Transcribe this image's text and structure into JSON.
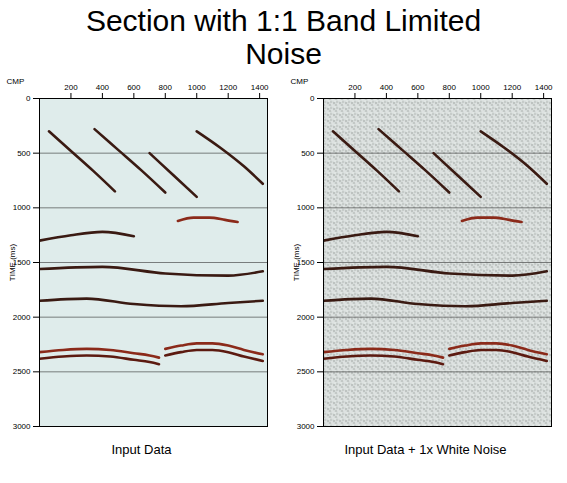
{
  "title": "Section with 1:1 Band Limited Noise",
  "chart_data": [
    {
      "type": "line",
      "title": "Input Data",
      "xlabel": "CMP",
      "ylabel": "TIME (ms)",
      "xlim": [
        0,
        1450
      ],
      "xticks": [
        200,
        400,
        600,
        800,
        1000,
        1200,
        1400
      ],
      "ylim": [
        0,
        3000
      ],
      "yticks": [
        0,
        500,
        1000,
        1500,
        2000,
        2500,
        3000
      ],
      "grid": true,
      "series": [
        {
          "color": "#8b2a1a",
          "x": [
            0,
            150,
            300,
            450,
            600,
            700,
            760
          ],
          "values": [
            2320,
            2300,
            2290,
            2300,
            2330,
            2350,
            2370
          ]
        },
        {
          "color": "#5c1a10",
          "x": [
            0,
            150,
            300,
            450,
            600,
            700,
            760
          ],
          "values": [
            2380,
            2360,
            2350,
            2360,
            2390,
            2410,
            2430
          ]
        },
        {
          "color": "#8b2a1a",
          "x": [
            800,
            900,
            1000,
            1100,
            1200,
            1300,
            1420
          ],
          "values": [
            2290,
            2260,
            2240,
            2240,
            2260,
            2300,
            2340
          ]
        },
        {
          "color": "#5c1a10",
          "x": [
            800,
            900,
            1000,
            1100,
            1200,
            1300,
            1420
          ],
          "values": [
            2350,
            2320,
            2300,
            2300,
            2320,
            2360,
            2400
          ]
        },
        {
          "color": "#8b2a1a",
          "x": [
            880,
            980,
            1080,
            1180,
            1260
          ],
          "values": [
            1120,
            1090,
            1090,
            1110,
            1130
          ]
        },
        {
          "color": "#3a1a12",
          "x": [
            60,
            200,
            340,
            480
          ],
          "values": [
            300,
            480,
            660,
            850
          ]
        },
        {
          "color": "#3a1a12",
          "x": [
            350,
            500,
            650,
            800
          ],
          "values": [
            280,
            470,
            660,
            860
          ]
        },
        {
          "color": "#3a1a12",
          "x": [
            700,
            850,
            1000
          ],
          "values": [
            500,
            700,
            900
          ]
        },
        {
          "color": "#3a1a12",
          "x": [
            1000,
            1150,
            1300,
            1420
          ],
          "values": [
            300,
            450,
            620,
            780
          ]
        },
        {
          "color": "#3a1a12",
          "x": [
            0,
            200,
            400,
            600
          ],
          "values": [
            1300,
            1250,
            1220,
            1260
          ]
        },
        {
          "color": "#3a1a12",
          "x": [
            0,
            400,
            800,
            1200,
            1420
          ],
          "values": [
            1560,
            1540,
            1600,
            1620,
            1580
          ]
        },
        {
          "color": "#3a1a12",
          "x": [
            0,
            300,
            600,
            900,
            1200,
            1420
          ],
          "values": [
            1850,
            1830,
            1880,
            1900,
            1870,
            1850
          ]
        }
      ]
    },
    {
      "type": "line",
      "title": "Input Data + 1x White Noise",
      "xlabel": "CMP",
      "ylabel": "TIME (ms)",
      "xlim": [
        0,
        1450
      ],
      "xticks": [
        200,
        400,
        600,
        800,
        1000,
        1200,
        1400
      ],
      "ylim": [
        0,
        3000
      ],
      "yticks": [
        0,
        500,
        1000,
        1500,
        2000,
        2500,
        3000
      ],
      "grid": true,
      "series": [
        {
          "color": "#8b2a1a",
          "x": [
            0,
            150,
            300,
            450,
            600,
            700,
            760
          ],
          "values": [
            2320,
            2300,
            2290,
            2300,
            2330,
            2350,
            2370
          ]
        },
        {
          "color": "#5c1a10",
          "x": [
            0,
            150,
            300,
            450,
            600,
            700,
            760
          ],
          "values": [
            2380,
            2360,
            2350,
            2360,
            2390,
            2410,
            2430
          ]
        },
        {
          "color": "#8b2a1a",
          "x": [
            800,
            900,
            1000,
            1100,
            1200,
            1300,
            1420
          ],
          "values": [
            2290,
            2260,
            2240,
            2240,
            2260,
            2300,
            2340
          ]
        },
        {
          "color": "#5c1a10",
          "x": [
            800,
            900,
            1000,
            1100,
            1200,
            1300,
            1420
          ],
          "values": [
            2350,
            2320,
            2300,
            2300,
            2320,
            2360,
            2400
          ]
        },
        {
          "color": "#8b2a1a",
          "x": [
            880,
            980,
            1080,
            1180,
            1260
          ],
          "values": [
            1120,
            1090,
            1090,
            1110,
            1130
          ]
        },
        {
          "color": "#3a1a12",
          "x": [
            60,
            200,
            340,
            480
          ],
          "values": [
            300,
            480,
            660,
            850
          ]
        },
        {
          "color": "#3a1a12",
          "x": [
            350,
            500,
            650,
            800
          ],
          "values": [
            280,
            470,
            660,
            860
          ]
        },
        {
          "color": "#3a1a12",
          "x": [
            700,
            850,
            1000
          ],
          "values": [
            500,
            700,
            900
          ]
        },
        {
          "color": "#3a1a12",
          "x": [
            1000,
            1150,
            1300,
            1420
          ],
          "values": [
            300,
            450,
            620,
            780
          ]
        },
        {
          "color": "#3a1a12",
          "x": [
            0,
            200,
            400,
            600
          ],
          "values": [
            1300,
            1250,
            1220,
            1260
          ]
        },
        {
          "color": "#3a1a12",
          "x": [
            0,
            400,
            800,
            1200,
            1420
          ],
          "values": [
            1560,
            1540,
            1600,
            1620,
            1580
          ]
        },
        {
          "color": "#3a1a12",
          "x": [
            0,
            300,
            600,
            900,
            1200,
            1420
          ],
          "values": [
            1850,
            1830,
            1880,
            1900,
            1870,
            1850
          ]
        }
      ]
    }
  ]
}
